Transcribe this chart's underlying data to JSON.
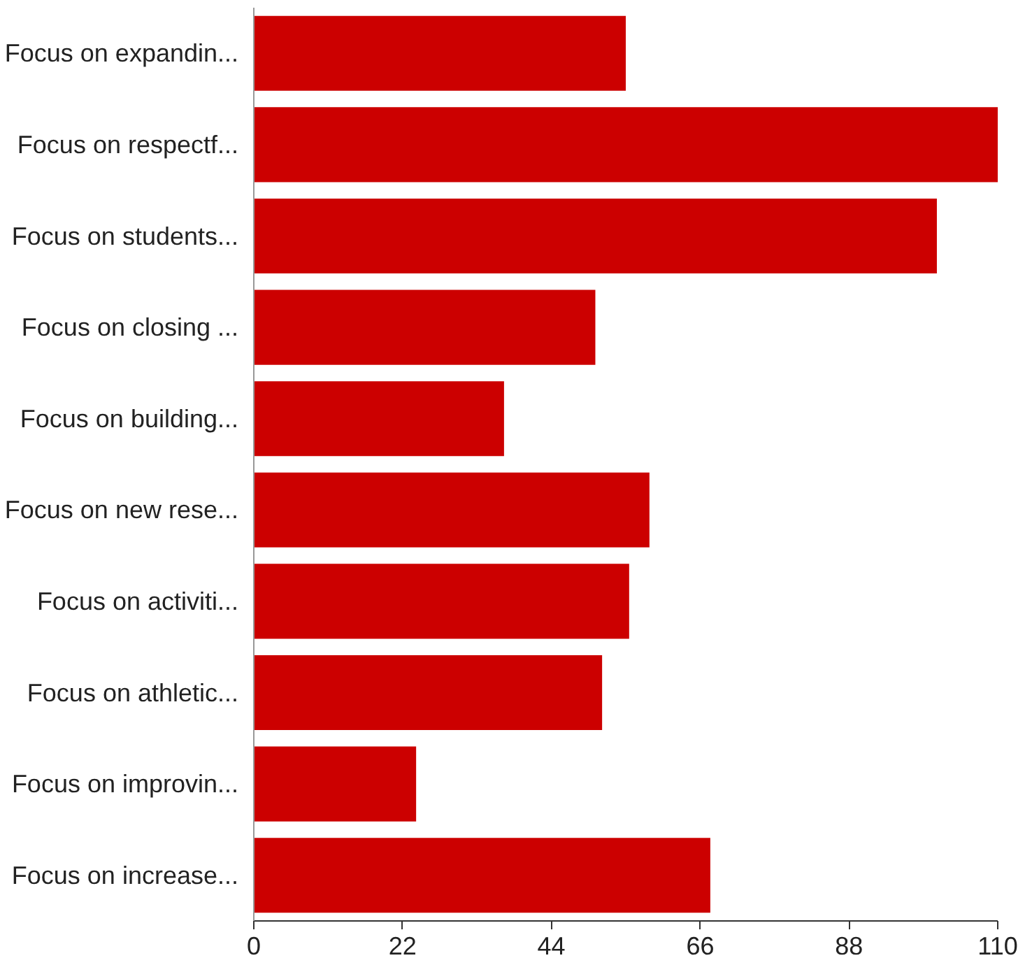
{
  "chart_data": {
    "type": "bar",
    "orientation": "horizontal",
    "categories": [
      "Focus on expandin...",
      "Focus on respectf...",
      "Focus on students...",
      "Focus on closing ...",
      "Focus on building...",
      "Focus on new rese...",
      "Focus on activiti...",
      "Focus on athletic...",
      "Focus on improvin...",
      "Focus on increase..."
    ],
    "values": [
      55,
      110,
      101,
      50.5,
      37,
      58.5,
      55.5,
      51.5,
      24,
      67.5
    ],
    "color": "#cc0000",
    "xlim": [
      0,
      110
    ],
    "xticks": [
      0,
      22,
      44,
      66,
      88,
      110
    ],
    "grid": false
  }
}
